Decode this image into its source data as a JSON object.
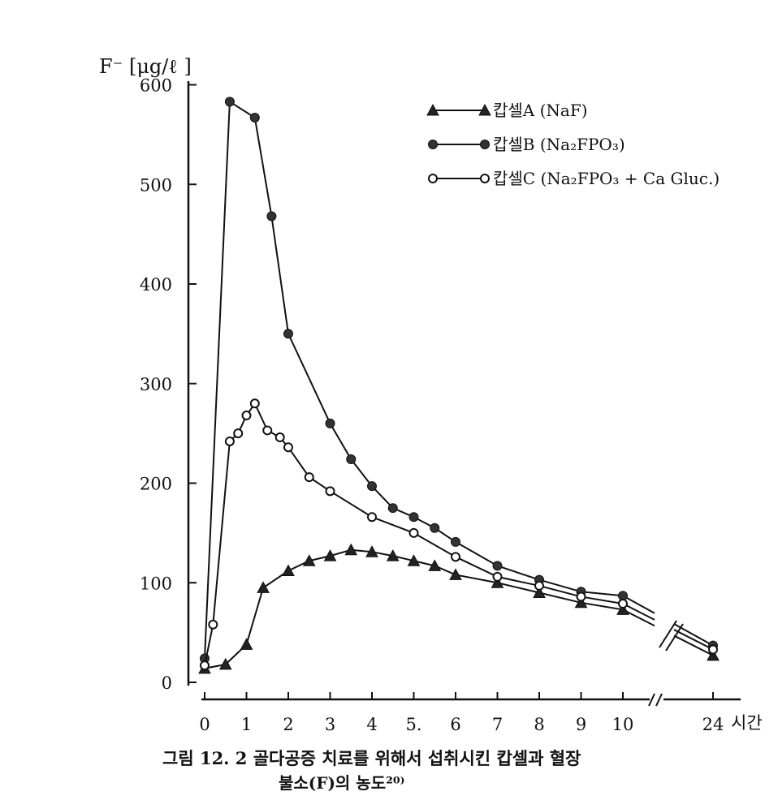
{
  "chart_data": {
    "type": "line",
    "ylabel": "F⁻ [μg/ℓ ]",
    "xunit": "시간",
    "x_tick_labels": [
      "0",
      "1",
      "2",
      "3",
      "4",
      "5.",
      "6",
      "7",
      "8",
      "9",
      "10",
      "24"
    ],
    "y_ticks": [
      0,
      100,
      200,
      300,
      400,
      500,
      600
    ],
    "ylim": [
      0,
      600
    ],
    "x_axis_break": "between 10 and 24",
    "grid": false,
    "legend_position": "top-right",
    "series": [
      {
        "name": "캅셀A (NaF)",
        "marker": "triangle",
        "x": [
          0,
          0.5,
          1,
          1.4,
          2,
          2.5,
          3,
          3.5,
          4,
          4.5,
          5,
          5.5,
          6,
          7,
          8,
          9,
          10,
          24
        ],
        "y": [
          14,
          18,
          38,
          95,
          112,
          122,
          127,
          133,
          131,
          127,
          122,
          117,
          108,
          100,
          90,
          80,
          73,
          27
        ]
      },
      {
        "name": "캅셀B (Na₂FPO₃)",
        "marker": "filled-circle",
        "x": [
          0,
          0.6,
          1.2,
          1.6,
          2,
          3,
          3.5,
          4,
          4.5,
          5,
          5.5,
          6,
          7,
          8,
          9,
          10,
          24
        ],
        "y": [
          24,
          583,
          567,
          468,
          350,
          260,
          224,
          197,
          175,
          166,
          155,
          141,
          117,
          103,
          91,
          87,
          37
        ]
      },
      {
        "name": "캅셀C (Na₂FPO₃ + Ca Gluc.)",
        "marker": "open-circle",
        "x": [
          0,
          0.2,
          0.6,
          0.8,
          1,
          1.2,
          1.5,
          1.8,
          2,
          2.5,
          3,
          4,
          5,
          6,
          7,
          8,
          9,
          10,
          24
        ],
        "y": [
          17,
          58,
          242,
          250,
          268,
          280,
          253,
          246,
          236,
          206,
          192,
          166,
          150,
          126,
          106,
          97,
          86,
          79,
          33
        ]
      }
    ]
  },
  "caption": {
    "line1": "그림 12. 2  골다공증 치료를 위해서 섭취시킨 캅셀과 혈장",
    "line2": "불소(F)의 농도²⁰⁾"
  }
}
